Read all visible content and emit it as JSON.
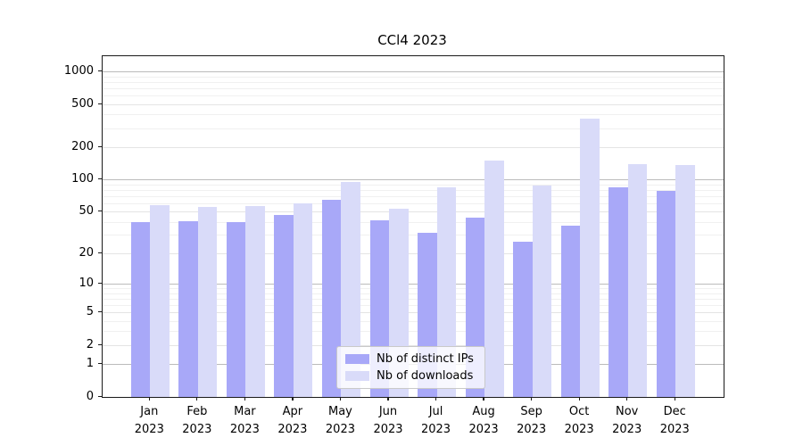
{
  "title": "CCl4 2023",
  "colors": {
    "distinct_ips": "#a8a8f8",
    "downloads": "#d9dbf9",
    "grid_major": "#bbbbbb",
    "grid_mid": "#e4e4e4",
    "grid_minor": "#f0f0f0",
    "axis": "#1a1a1a"
  },
  "legend": {
    "entries": [
      {
        "label": "Nb of distinct IPs",
        "color_key": "distinct_ips"
      },
      {
        "label": "Nb of downloads",
        "color_key": "downloads"
      }
    ]
  },
  "chart_data": {
    "type": "bar",
    "title": "CCl4 2023",
    "categories": [
      "Jan",
      "Feb",
      "Mar",
      "Apr",
      "May",
      "Jun",
      "Jul",
      "Aug",
      "Sep",
      "Oct",
      "Nov",
      "Dec"
    ],
    "x_year": "2023",
    "series": [
      {
        "name": "Nb of distinct IPs",
        "values": [
          40,
          41,
          40,
          47,
          65,
          42,
          32,
          44,
          26,
          37,
          85,
          79
        ]
      },
      {
        "name": "Nb of downloads",
        "values": [
          58,
          56,
          57,
          60,
          96,
          54,
          85,
          150,
          89,
          370,
          140,
          137
        ]
      }
    ],
    "xlabel": "",
    "ylabel": "",
    "y_scale": "log10(1+v)",
    "y_ticks_labeled": [
      0,
      1,
      2,
      5,
      10,
      20,
      50,
      100,
      200,
      500,
      1000
    ],
    "y_ticks_major_grid": [
      1,
      10,
      100,
      1000
    ],
    "y_ticks_mid_grid": [
      2,
      5,
      20,
      50,
      200,
      500
    ],
    "y_ticks_minor_grid": [
      3,
      4,
      6,
      7,
      8,
      9,
      30,
      40,
      60,
      70,
      80,
      90,
      300,
      400,
      600,
      700,
      800,
      900
    ],
    "ylim": [
      0,
      1400
    ],
    "grid": true,
    "legend_position": "lower center"
  }
}
